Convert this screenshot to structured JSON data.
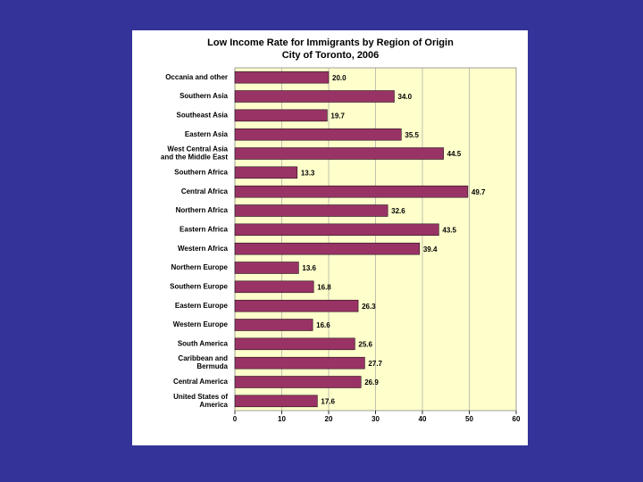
{
  "chart_data": {
    "type": "bar",
    "orientation": "horizontal",
    "title": "Low Income Rate for Immigrants by Region of Origin",
    "subtitle": "City of Toronto, 2006",
    "categories": [
      "Occania and other",
      "Southern Asia",
      "Southeast Asia",
      "Eastern Asia",
      "West Central Asia\nand the Middle East",
      "Southern Africa",
      "Central Africa",
      "Northern Africa",
      "Eastern Africa",
      "Western Africa",
      "Northern Europe",
      "Southern Europe",
      "Eastern Europe",
      "Western Europe",
      "South America",
      "Caribbean and\nBermuda",
      "Central America",
      "United States of\nAmerica"
    ],
    "values": [
      20,
      34,
      19.7,
      35.5,
      44.5,
      13.3,
      49.7,
      32.6,
      43.5,
      39.4,
      13.6,
      16.8,
      26.3,
      16.6,
      25.6,
      27.7,
      26.9,
      17.6
    ],
    "value_labels": [
      "20.0",
      "34.0",
      "19.7",
      "35.5",
      "44.5",
      "13.3",
      "49.7",
      "32.6",
      "43.5",
      "39.4",
      "13.6",
      "16.8",
      "26.3",
      "16.6",
      "25.6",
      "27.7",
      "26.9",
      "17.6"
    ],
    "color": "#993366",
    "xlim": [
      0,
      60
    ],
    "xticks": [
      0,
      10,
      20,
      30,
      40,
      50,
      60
    ],
    "grid": true
  }
}
